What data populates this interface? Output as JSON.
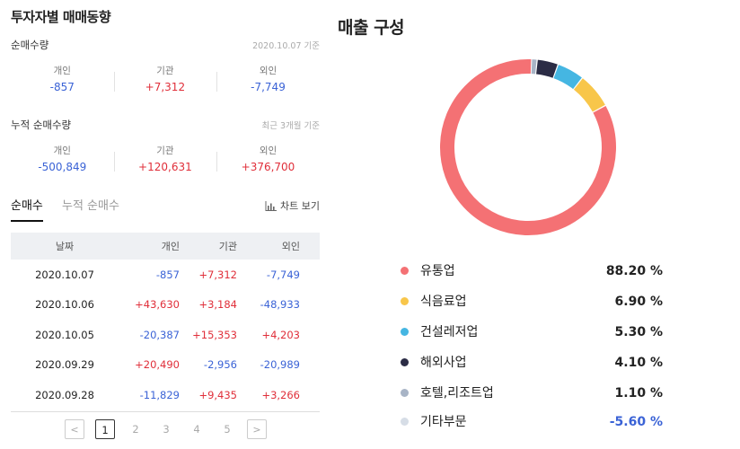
{
  "left": {
    "title": "투자자별 매매동향",
    "net": {
      "label": "순매수량",
      "note": "2020.10.07 기준",
      "stats": [
        {
          "label": "개인",
          "value": "-857",
          "sign": "neg"
        },
        {
          "label": "기관",
          "value": "+7,312",
          "sign": "pos"
        },
        {
          "label": "외인",
          "value": "-7,749",
          "sign": "neg"
        }
      ]
    },
    "cum": {
      "label": "누적 순매수량",
      "note": "최근 3개월 기준",
      "stats": [
        {
          "label": "개인",
          "value": "-500,849",
          "sign": "neg"
        },
        {
          "label": "기관",
          "value": "+120,631",
          "sign": "pos"
        },
        {
          "label": "외인",
          "value": "+376,700",
          "sign": "pos"
        }
      ]
    },
    "tabs": {
      "active": "순매수",
      "inactive": "누적 순매수"
    },
    "chart_button": "차트 보기",
    "table": {
      "headers": [
        "날짜",
        "개인",
        "기관",
        "외인"
      ],
      "rows": [
        {
          "date": "2020.10.07",
          "v1": "-857",
          "v2": "+7,312",
          "v3": "-7,749"
        },
        {
          "date": "2020.10.06",
          "v1": "+43,630",
          "v2": "+3,184",
          "v3": "-48,933"
        },
        {
          "date": "2020.10.05",
          "v1": "-20,387",
          "v2": "+15,353",
          "v3": "+4,203"
        },
        {
          "date": "2020.09.29",
          "v1": "+20,490",
          "v2": "-2,956",
          "v3": "-20,989"
        },
        {
          "date": "2020.09.28",
          "v1": "-11,829",
          "v2": "+9,435",
          "v3": "+3,266"
        }
      ]
    },
    "pager": {
      "prev": "<",
      "pages": [
        "1",
        "2",
        "3",
        "4",
        "5"
      ],
      "current": "1",
      "next": ">"
    }
  },
  "right": {
    "title": "매출 구성",
    "legend": [
      {
        "name": "유통업",
        "value": "88.20 %",
        "color": "#f47174"
      },
      {
        "name": "식음료업",
        "value": "6.90 %",
        "color": "#f8c64a"
      },
      {
        "name": "건설레저업",
        "value": "5.30 %",
        "color": "#45b6e2"
      },
      {
        "name": "해외사업",
        "value": "4.10 %",
        "color": "#2b2c45"
      },
      {
        "name": "호텔,리조트업",
        "value": "1.10 %",
        "color": "#a8b4c6"
      },
      {
        "name": "기타부문",
        "value": "-5.60 %",
        "color": "#d6dde6",
        "negative": true
      }
    ]
  },
  "chart_data": {
    "type": "pie",
    "title": "매출 구성",
    "labels": [
      "유통업",
      "식음료업",
      "건설레저업",
      "해외사업",
      "호텔,리조트업",
      "기타부문"
    ],
    "values": [
      88.2,
      6.9,
      5.3,
      4.1,
      1.1,
      -5.6
    ],
    "colors": [
      "#f47174",
      "#f8c64a",
      "#45b6e2",
      "#2b2c45",
      "#a8b4c6",
      "#d6dde6"
    ],
    "donut": true,
    "legend_placement": "bottom"
  }
}
